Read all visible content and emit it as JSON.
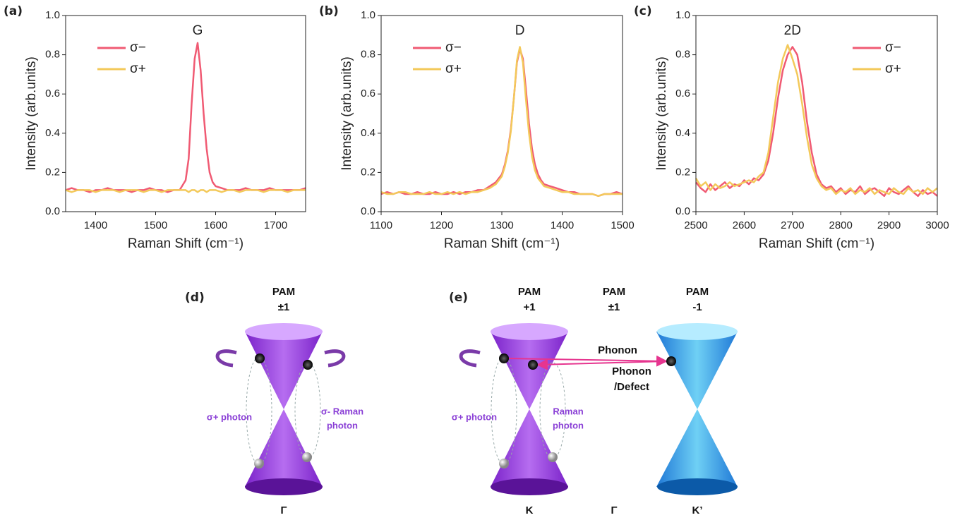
{
  "chart_data": [
    {
      "type": "line",
      "panel_label": "(a)",
      "peak_label": "G",
      "x_label": "Raman Shift (cm⁻¹)",
      "y_label": "Intensity (arb.units)",
      "xlim": [
        1350,
        1750
      ],
      "xticks": [
        1400,
        1500,
        1600,
        1700
      ],
      "ylim": [
        0,
        1
      ],
      "yticks": [
        {
          "value": 0,
          "label": "0.0"
        },
        0.2,
        0.4,
        0.6,
        0.8,
        {
          "value": 1,
          "label": "1.0"
        }
      ],
      "legend": "upper left",
      "x": [
        1350,
        1360,
        1370,
        1380,
        1390,
        1400,
        1410,
        1420,
        1430,
        1440,
        1450,
        1460,
        1470,
        1480,
        1490,
        1500,
        1510,
        1520,
        1530,
        1540,
        1550,
        1555,
        1560,
        1565,
        1570,
        1575,
        1580,
        1585,
        1590,
        1595,
        1600,
        1610,
        1620,
        1630,
        1640,
        1650,
        1660,
        1670,
        1680,
        1690,
        1700,
        1710,
        1720,
        1730,
        1740,
        1750
      ],
      "series": [
        {
          "name": "σ−",
          "color": "#f05a73",
          "values": [
            0.11,
            0.12,
            0.11,
            0.11,
            0.1,
            0.11,
            0.11,
            0.12,
            0.11,
            0.11,
            0.11,
            0.1,
            0.11,
            0.11,
            0.12,
            0.11,
            0.11,
            0.1,
            0.11,
            0.11,
            0.16,
            0.27,
            0.55,
            0.78,
            0.86,
            0.72,
            0.5,
            0.32,
            0.2,
            0.15,
            0.13,
            0.12,
            0.11,
            0.11,
            0.11,
            0.12,
            0.11,
            0.11,
            0.11,
            0.12,
            0.11,
            0.11,
            0.11,
            0.11,
            0.11,
            0.12
          ]
        },
        {
          "name": "σ+",
          "color": "#f3c95a",
          "values": [
            0.11,
            0.1,
            0.11,
            0.11,
            0.11,
            0.1,
            0.11,
            0.11,
            0.11,
            0.1,
            0.11,
            0.11,
            0.11,
            0.1,
            0.11,
            0.11,
            0.1,
            0.11,
            0.11,
            0.11,
            0.11,
            0.1,
            0.11,
            0.11,
            0.1,
            0.11,
            0.11,
            0.1,
            0.11,
            0.11,
            0.11,
            0.1,
            0.11,
            0.11,
            0.1,
            0.11,
            0.11,
            0.11,
            0.1,
            0.11,
            0.11,
            0.11,
            0.1,
            0.11,
            0.11,
            0.11
          ]
        }
      ]
    },
    {
      "type": "line",
      "panel_label": "(b)",
      "peak_label": "D",
      "x_label": "Raman Shift (cm⁻¹)",
      "y_label": "Intensity (arb.units)",
      "xlim": [
        1100,
        1500
      ],
      "xticks": [
        1100,
        1200,
        1300,
        1400,
        1500
      ],
      "ylim": [
        0,
        1
      ],
      "yticks": [
        {
          "value": 0,
          "label": "0.0"
        },
        0.2,
        0.4,
        0.6,
        0.8,
        {
          "value": 1,
          "label": "1.0"
        }
      ],
      "legend": "upper left",
      "x": [
        1100,
        1110,
        1120,
        1130,
        1140,
        1150,
        1160,
        1170,
        1180,
        1190,
        1200,
        1210,
        1220,
        1230,
        1240,
        1250,
        1260,
        1270,
        1280,
        1290,
        1300,
        1305,
        1310,
        1315,
        1320,
        1325,
        1330,
        1335,
        1340,
        1345,
        1350,
        1355,
        1360,
        1365,
        1370,
        1380,
        1390,
        1400,
        1410,
        1420,
        1430,
        1440,
        1450,
        1460,
        1470,
        1480,
        1490,
        1500
      ],
      "series": [
        {
          "name": "σ−",
          "color": "#f05a73",
          "values": [
            0.09,
            0.1,
            0.09,
            0.1,
            0.09,
            0.09,
            0.1,
            0.09,
            0.09,
            0.1,
            0.09,
            0.09,
            0.1,
            0.09,
            0.1,
            0.1,
            0.11,
            0.11,
            0.13,
            0.15,
            0.19,
            0.24,
            0.31,
            0.42,
            0.58,
            0.76,
            0.83,
            0.78,
            0.62,
            0.45,
            0.32,
            0.24,
            0.19,
            0.16,
            0.14,
            0.13,
            0.12,
            0.11,
            0.1,
            0.1,
            0.09,
            0.09,
            0.09,
            0.08,
            0.09,
            0.09,
            0.1,
            0.09
          ]
        },
        {
          "name": "σ+",
          "color": "#f3c95a",
          "values": [
            0.1,
            0.09,
            0.09,
            0.1,
            0.1,
            0.09,
            0.09,
            0.09,
            0.1,
            0.09,
            0.09,
            0.1,
            0.09,
            0.1,
            0.09,
            0.1,
            0.1,
            0.11,
            0.12,
            0.14,
            0.18,
            0.23,
            0.3,
            0.41,
            0.58,
            0.77,
            0.84,
            0.76,
            0.57,
            0.4,
            0.28,
            0.21,
            0.17,
            0.15,
            0.13,
            0.12,
            0.11,
            0.1,
            0.1,
            0.09,
            0.09,
            0.09,
            0.09,
            0.08,
            0.09,
            0.09,
            0.09,
            0.09
          ]
        }
      ]
    },
    {
      "type": "line",
      "panel_label": "(c)",
      "peak_label": "2D",
      "x_label": "Raman Shift (cm⁻¹)",
      "y_label": "Intensity (arb.units)",
      "xlim": [
        2500,
        3000
      ],
      "xticks": [
        2500,
        2600,
        2700,
        2800,
        2900,
        3000
      ],
      "ylim": [
        0,
        1
      ],
      "yticks": [
        {
          "value": 0,
          "label": "0.0"
        },
        0.2,
        0.4,
        0.6,
        0.8,
        {
          "value": 1,
          "label": "1.0"
        }
      ],
      "legend": "upper right",
      "x": [
        2500,
        2510,
        2520,
        2530,
        2540,
        2550,
        2560,
        2570,
        2580,
        2590,
        2600,
        2610,
        2620,
        2630,
        2640,
        2650,
        2660,
        2670,
        2680,
        2690,
        2700,
        2710,
        2720,
        2730,
        2740,
        2750,
        2760,
        2770,
        2780,
        2790,
        2800,
        2810,
        2820,
        2830,
        2840,
        2850,
        2860,
        2870,
        2880,
        2890,
        2900,
        2910,
        2920,
        2930,
        2940,
        2950,
        2960,
        2970,
        2980,
        2990,
        3000
      ],
      "series": [
        {
          "name": "σ−",
          "color": "#f05a73",
          "values": [
            0.15,
            0.12,
            0.1,
            0.14,
            0.11,
            0.13,
            0.15,
            0.12,
            0.14,
            0.13,
            0.16,
            0.14,
            0.17,
            0.16,
            0.19,
            0.26,
            0.4,
            0.58,
            0.72,
            0.8,
            0.84,
            0.8,
            0.66,
            0.46,
            0.3,
            0.19,
            0.14,
            0.12,
            0.13,
            0.1,
            0.12,
            0.09,
            0.11,
            0.1,
            0.13,
            0.09,
            0.11,
            0.12,
            0.1,
            0.08,
            0.12,
            0.1,
            0.09,
            0.11,
            0.13,
            0.1,
            0.08,
            0.11,
            0.09,
            0.1,
            0.08
          ]
        },
        {
          "name": "σ+",
          "color": "#f3c95a",
          "values": [
            0.17,
            0.13,
            0.15,
            0.11,
            0.14,
            0.12,
            0.13,
            0.15,
            0.13,
            0.14,
            0.15,
            0.16,
            0.15,
            0.18,
            0.2,
            0.3,
            0.48,
            0.66,
            0.78,
            0.85,
            0.78,
            0.7,
            0.55,
            0.38,
            0.24,
            0.17,
            0.13,
            0.11,
            0.12,
            0.09,
            0.11,
            0.1,
            0.12,
            0.09,
            0.11,
            0.1,
            0.12,
            0.09,
            0.11,
            0.1,
            0.09,
            0.12,
            0.1,
            0.09,
            0.12,
            0.1,
            0.11,
            0.09,
            0.12,
            0.1,
            0.12
          ]
        }
      ]
    }
  ],
  "diagrams": {
    "d": {
      "label": "(d)",
      "pam": [
        "PAM",
        "±1"
      ],
      "left_photon": "σ+ photon",
      "right_photon": [
        "σ- Raman",
        "photon"
      ],
      "point": "Γ"
    },
    "e": {
      "label": "(e)",
      "pam_k": [
        "PAM",
        "+1"
      ],
      "pam_gamma": [
        "PAM",
        "±1"
      ],
      "pam_k2": [
        "PAM",
        "-1"
      ],
      "phonon": "Phonon",
      "phonon_defect": [
        "Phonon",
        "/Defect"
      ],
      "left_photon": "σ+ photon",
      "right_photon": [
        "Raman",
        "photon"
      ],
      "points": [
        "K",
        "Γ",
        "K’"
      ]
    }
  }
}
